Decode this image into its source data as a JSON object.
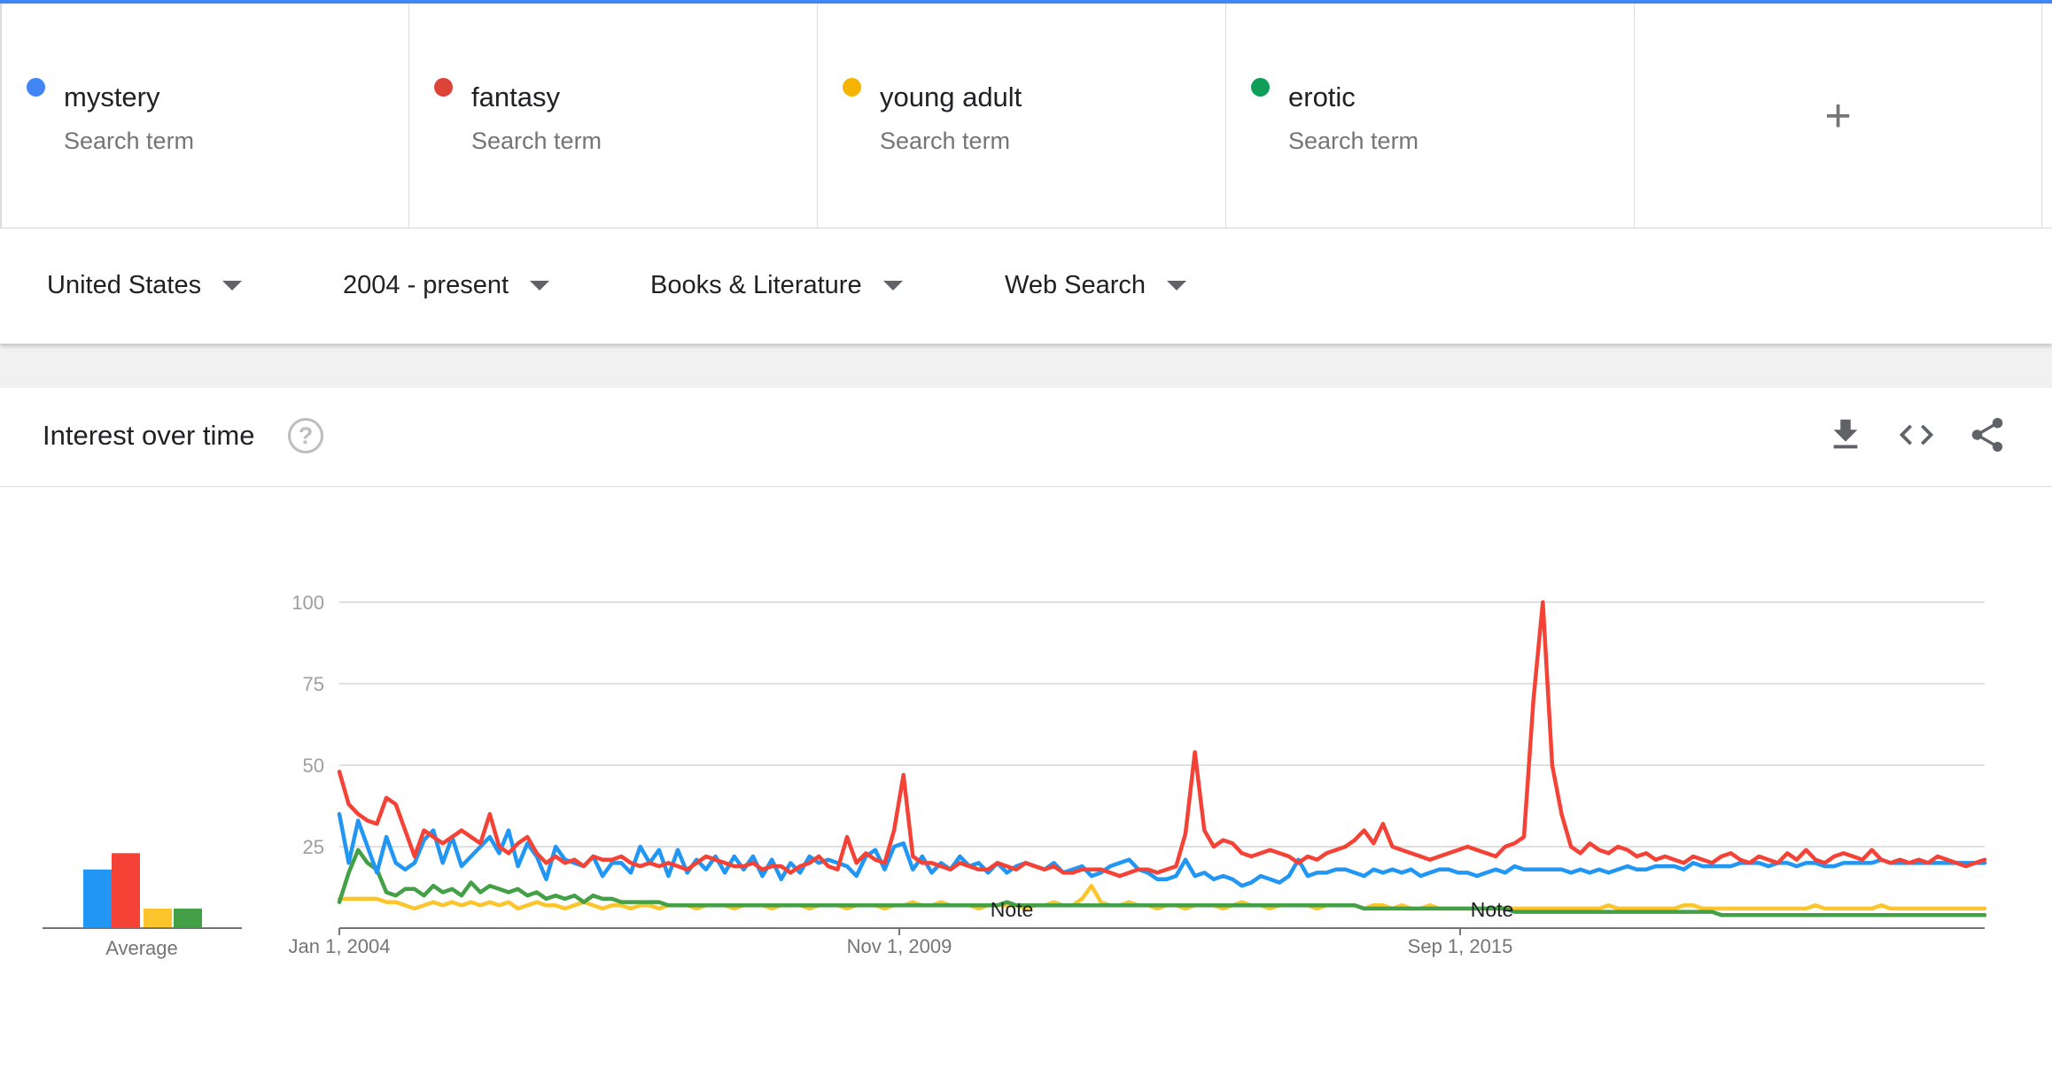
{
  "colors": {
    "accent": "#4285f4",
    "mystery": "#2196f3",
    "fantasy": "#f44336",
    "young_adult": "#fbc52b",
    "erotic": "#43a047"
  },
  "terms": [
    {
      "name": "mystery",
      "sub": "Search term",
      "color": "#4285f4"
    },
    {
      "name": "fantasy",
      "sub": "Search term",
      "color": "#db4437"
    },
    {
      "name": "young adult",
      "sub": "Search term",
      "color": "#f4b400"
    },
    {
      "name": "erotic",
      "sub": "Search term",
      "color": "#0f9d58"
    }
  ],
  "add_term_icon": "plus-icon",
  "filters": {
    "region": "United States",
    "time": "2004 - present",
    "category": "Books & Literature",
    "search_type": "Web Search"
  },
  "card": {
    "title": "Interest over time",
    "help_icon": "help-icon",
    "tools": [
      "download-icon",
      "embed-icon",
      "share-icon"
    ]
  },
  "average_label": "Average",
  "chart_data": {
    "type": "line",
    "title": "",
    "xlabel": "",
    "ylabel": "",
    "ylim": [
      0,
      100
    ],
    "yticks": [
      25,
      50,
      75,
      100
    ],
    "xtick_labels": [
      "Jan 1, 2004",
      "Nov 1, 2009",
      "Sep 1, 2015"
    ],
    "x_start": "2004-01",
    "x_end": "2020-09",
    "x_step": "1 month (sampled every 2 months)",
    "notes": [
      "Note",
      "Note"
    ],
    "averages": {
      "mystery": 18,
      "fantasy": 23,
      "young_adult": 6,
      "erotic": 6
    },
    "series": [
      {
        "name": "mystery",
        "values": [
          35,
          20,
          33,
          25,
          17,
          28,
          20,
          18,
          20,
          27,
          30,
          20,
          28,
          19,
          22,
          25,
          28,
          23,
          30,
          19,
          26,
          22,
          15,
          25,
          21,
          20,
          19,
          22,
          16,
          20,
          20,
          17,
          25,
          20,
          24,
          16,
          24,
          17,
          21,
          18,
          22,
          17,
          22,
          18,
          22,
          16,
          21,
          15,
          20,
          17,
          22,
          20,
          21,
          20,
          19,
          16,
          22,
          24,
          18,
          25,
          26,
          18,
          22,
          17,
          20,
          18,
          22,
          19,
          20,
          17,
          20,
          17,
          19,
          20,
          19,
          18,
          20,
          17,
          18,
          19,
          16,
          17,
          19,
          20,
          21,
          18,
          17,
          15,
          15,
          16,
          21,
          16,
          17,
          15,
          16,
          15,
          13,
          14,
          16,
          15,
          14,
          16,
          21,
          16,
          17,
          17,
          18,
          18,
          17,
          16,
          18,
          17,
          18,
          17,
          18,
          16,
          17,
          18,
          18,
          17,
          17,
          16,
          17,
          18,
          17,
          19,
          18,
          18,
          18,
          18,
          18,
          17,
          18,
          17,
          18,
          17,
          18,
          19,
          18,
          18,
          19,
          19,
          19,
          18,
          20,
          19,
          19,
          19,
          19,
          20,
          20,
          20,
          19,
          20,
          20,
          19,
          20,
          20,
          19,
          19,
          20,
          20,
          20,
          20,
          21,
          20,
          20,
          20,
          20,
          20,
          20,
          20,
          20,
          20,
          20,
          20
        ]
      },
      {
        "name": "fantasy",
        "values": [
          48,
          38,
          35,
          33,
          32,
          40,
          38,
          30,
          22,
          30,
          28,
          26,
          28,
          30,
          28,
          26,
          35,
          25,
          23,
          26,
          28,
          23,
          20,
          22,
          20,
          21,
          19,
          22,
          21,
          21,
          22,
          20,
          19,
          20,
          19,
          20,
          19,
          18,
          20,
          22,
          21,
          20,
          19,
          19,
          20,
          18,
          19,
          19,
          17,
          19,
          20,
          22,
          19,
          18,
          28,
          20,
          23,
          21,
          20,
          30,
          47,
          22,
          20,
          20,
          19,
          18,
          20,
          19,
          18,
          18,
          20,
          19,
          18,
          20,
          19,
          18,
          19,
          17,
          17,
          18,
          18,
          18,
          17,
          16,
          17,
          18,
          18,
          17,
          18,
          19,
          29,
          54,
          30,
          25,
          27,
          26,
          23,
          22,
          23,
          24,
          23,
          22,
          20,
          22,
          21,
          23,
          24,
          25,
          27,
          30,
          26,
          32,
          25,
          24,
          23,
          22,
          21,
          22,
          23,
          24,
          25,
          24,
          23,
          22,
          25,
          26,
          28,
          70,
          100,
          50,
          35,
          25,
          23,
          26,
          24,
          23,
          25,
          24,
          22,
          23,
          21,
          22,
          21,
          20,
          22,
          21,
          20,
          22,
          23,
          21,
          20,
          22,
          21,
          20,
          23,
          21,
          24,
          21,
          20,
          22,
          23,
          22,
          21,
          24,
          21,
          20,
          21,
          20,
          21,
          20,
          22,
          21,
          20,
          19,
          20,
          21
        ]
      },
      {
        "name": "young adult",
        "values": [
          9,
          9,
          9,
          9,
          9,
          8,
          8,
          7,
          6,
          7,
          8,
          7,
          8,
          7,
          8,
          7,
          8,
          7,
          8,
          6,
          7,
          8,
          7,
          7,
          6,
          7,
          8,
          7,
          6,
          7,
          7,
          6,
          7,
          7,
          6,
          7,
          7,
          7,
          6,
          7,
          7,
          7,
          6,
          7,
          7,
          7,
          6,
          7,
          7,
          7,
          6,
          7,
          7,
          7,
          6,
          7,
          7,
          7,
          6,
          7,
          7,
          8,
          7,
          7,
          8,
          7,
          7,
          7,
          6,
          7,
          7,
          7,
          7,
          6,
          7,
          7,
          8,
          7,
          7,
          9,
          13,
          8,
          7,
          7,
          8,
          7,
          7,
          6,
          7,
          7,
          6,
          7,
          7,
          7,
          6,
          7,
          8,
          7,
          7,
          6,
          7,
          7,
          7,
          7,
          6,
          7,
          7,
          7,
          7,
          6,
          7,
          7,
          6,
          7,
          6,
          6,
          7,
          6,
          6,
          6,
          6,
          6,
          6,
          6,
          6,
          6,
          6,
          6,
          6,
          6,
          6,
          6,
          6,
          6,
          6,
          7,
          6,
          6,
          6,
          6,
          6,
          6,
          6,
          7,
          7,
          6,
          6,
          6,
          6,
          6,
          6,
          6,
          6,
          6,
          6,
          6,
          6,
          7,
          6,
          6,
          6,
          6,
          6,
          6,
          7,
          6,
          6,
          6,
          6,
          6,
          6,
          6,
          6,
          6,
          6,
          6
        ]
      },
      {
        "name": "erotic",
        "values": [
          8,
          17,
          24,
          20,
          18,
          11,
          10,
          12,
          12,
          10,
          13,
          11,
          12,
          10,
          14,
          11,
          13,
          12,
          11,
          12,
          10,
          11,
          9,
          10,
          9,
          10,
          8,
          10,
          9,
          9,
          8,
          8,
          8,
          8,
          8,
          7,
          7,
          7,
          7,
          7,
          7,
          7,
          7,
          7,
          7,
          7,
          7,
          7,
          7,
          7,
          7,
          7,
          7,
          7,
          7,
          7,
          7,
          7,
          7,
          7,
          7,
          7,
          7,
          7,
          7,
          7,
          7,
          7,
          7,
          7,
          7,
          8,
          7,
          7,
          7,
          7,
          7,
          7,
          7,
          7,
          7,
          7,
          7,
          7,
          7,
          7,
          7,
          7,
          7,
          7,
          7,
          7,
          7,
          7,
          7,
          7,
          7,
          7,
          7,
          7,
          7,
          7,
          7,
          7,
          7,
          7,
          7,
          7,
          7,
          6,
          6,
          6,
          6,
          6,
          6,
          6,
          6,
          6,
          6,
          6,
          6,
          6,
          6,
          6,
          6,
          5,
          5,
          5,
          5,
          5,
          5,
          5,
          5,
          5,
          5,
          5,
          5,
          5,
          5,
          5,
          5,
          5,
          5,
          5,
          5,
          5,
          5,
          4,
          4,
          4,
          4,
          4,
          4,
          4,
          4,
          4,
          4,
          4,
          4,
          4,
          4,
          4,
          4,
          4,
          4,
          4,
          4,
          4,
          4,
          4,
          4,
          4,
          4,
          4,
          4,
          4
        ]
      }
    ]
  }
}
